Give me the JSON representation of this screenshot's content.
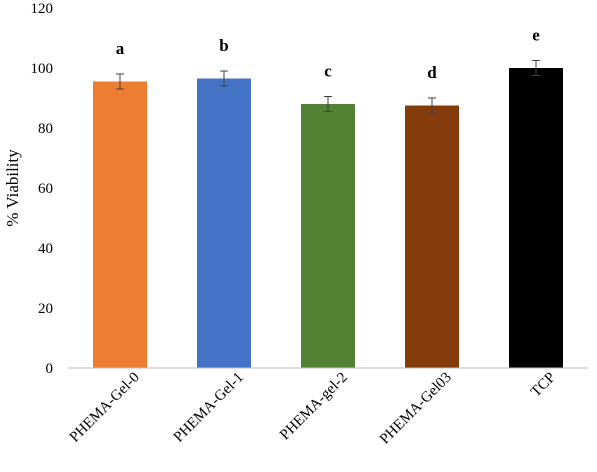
{
  "chart_data": {
    "type": "bar",
    "title": "",
    "xlabel": "",
    "ylabel": "% Viability",
    "ylim": [
      0,
      120
    ],
    "yticks": [
      0,
      20,
      40,
      60,
      80,
      100,
      120
    ],
    "grid": false,
    "categories": [
      "PHEMA-Gel-0",
      "PHEMA-Gel-1",
      "PHEMA-gel-2",
      "PHEMA-Gel03",
      "TCP"
    ],
    "values": [
      95.5,
      96.5,
      88,
      87.5,
      100
    ],
    "errors": [
      2.5,
      2.5,
      2.5,
      2.5,
      2.5
    ],
    "significance_labels": [
      "a",
      "b",
      "c",
      "d",
      "e"
    ],
    "colors": [
      "#ED7D31",
      "#4472C4",
      "#548235",
      "#843C0C",
      "#000000"
    ]
  }
}
